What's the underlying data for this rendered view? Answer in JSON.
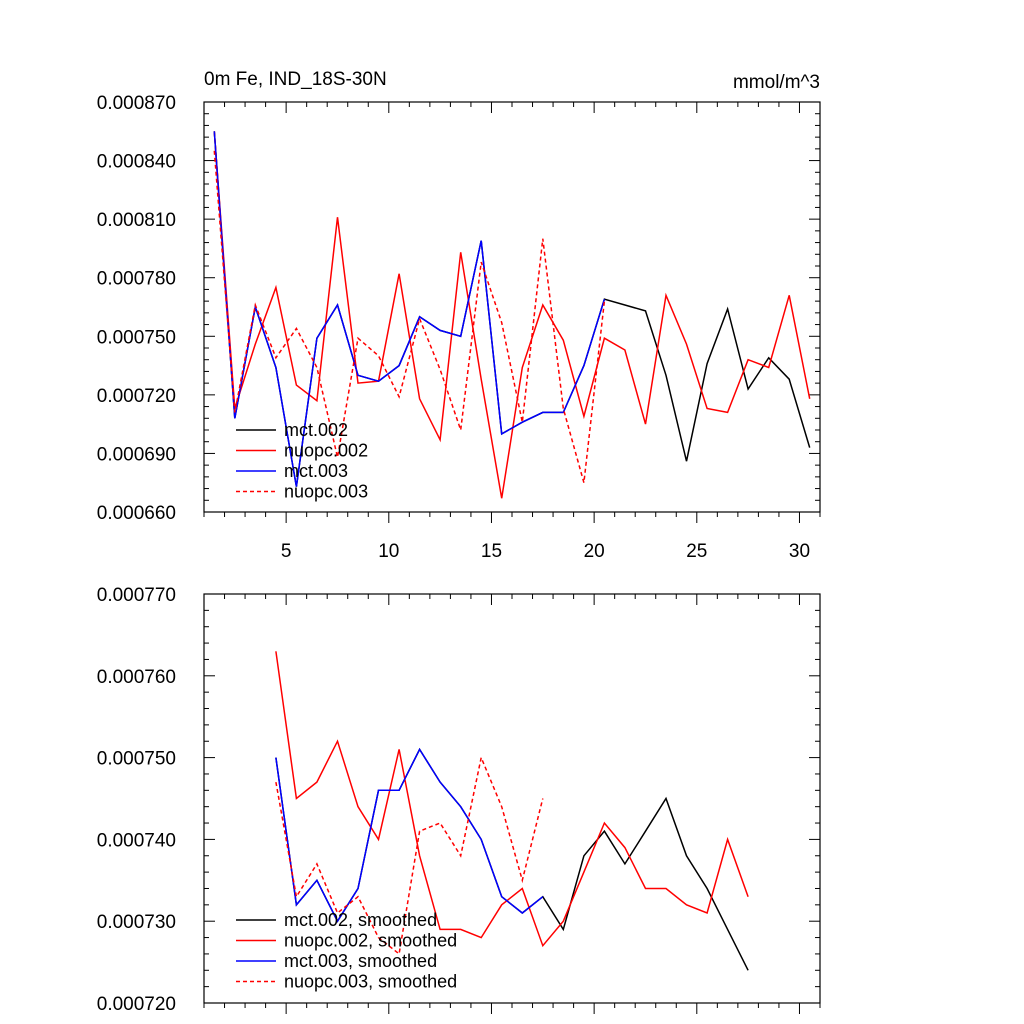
{
  "colors": {
    "mct_002": "#000000",
    "nuopc_002": "#ff0000",
    "mct_003": "#0000ff",
    "nuopc_003": "#ff0000"
  },
  "chart_data": [
    {
      "type": "line",
      "title": "0m Fe, IND_18S-30N",
      "units": "mmol/m^3",
      "xlabel": "",
      "ylabel": "",
      "xlim": [
        1,
        31
      ],
      "ylim": [
        0.00066,
        0.00087
      ],
      "y_tick_labels": [
        "0.000660",
        "0.000690",
        "0.000720",
        "0.000750",
        "0.000780",
        "0.000810",
        "0.000840",
        "0.000870"
      ],
      "y_ticks": [
        0.00066,
        0.00069,
        0.00072,
        0.00075,
        0.00078,
        0.00081,
        0.00084,
        0.00087
      ],
      "x_tick_labels": [
        "5",
        "10",
        "15",
        "20",
        "25",
        "30"
      ],
      "x_ticks": [
        5,
        10,
        15,
        20,
        25,
        30
      ],
      "legend_position": "bottom-left",
      "series": [
        {
          "name": "mct.002",
          "style": "solid",
          "color": "#000000",
          "x": [
            1.5,
            2.5,
            3.5,
            4.5,
            5.5,
            6.5,
            7.5,
            8.5,
            9.5,
            10.5,
            11.5,
            12.5,
            13.5,
            14.5,
            15.5,
            16.5,
            17.5,
            18.5,
            19.5,
            20.5,
            21.5,
            22.5,
            23.5,
            24.5,
            25.5,
            26.5,
            27.5,
            28.5,
            29.5,
            30.5
          ],
          "values": [
            0.000855,
            0.000708,
            0.000765,
            0.000734,
            0.000673,
            0.000749,
            0.000766,
            0.00073,
            0.000727,
            0.000735,
            0.00076,
            0.000753,
            0.00075,
            0.000799,
            0.0007,
            0.000706,
            0.000711,
            0.000711,
            0.000735,
            0.000769,
            0.000766,
            0.000763,
            0.00073,
            0.000686,
            0.000736,
            0.000764,
            0.000723,
            0.000739,
            0.000728,
            0.000693
          ]
        },
        {
          "name": "nuopc.002",
          "style": "solid",
          "color": "#ff0000",
          "x": [
            1.5,
            2.5,
            3.5,
            4.5,
            5.5,
            6.5,
            7.5,
            8.5,
            9.5,
            10.5,
            11.5,
            12.5,
            13.5,
            14.5,
            15.5,
            16.5,
            17.5,
            18.5,
            19.5,
            20.5,
            21.5,
            22.5,
            23.5,
            24.5,
            25.5,
            26.5,
            27.5,
            28.5,
            29.5,
            30.5
          ],
          "values": [
            0.000855,
            0.000713,
            0.000746,
            0.000775,
            0.000725,
            0.000717,
            0.000811,
            0.000726,
            0.000727,
            0.000782,
            0.000718,
            0.000697,
            0.000793,
            0.000728,
            0.000667,
            0.000734,
            0.000766,
            0.000748,
            0.000709,
            0.000749,
            0.000743,
            0.000705,
            0.000771,
            0.000746,
            0.000713,
            0.000711,
            0.000738,
            0.000734,
            0.000771,
            0.000718
          ]
        },
        {
          "name": "mct.003",
          "style": "solid",
          "color": "#0000ff",
          "x": [
            1.5,
            2.5,
            3.5,
            4.5,
            5.5,
            6.5,
            7.5,
            8.5,
            9.5,
            10.5,
            11.5,
            12.5,
            13.5,
            14.5,
            15.5,
            16.5,
            17.5,
            18.5,
            19.5,
            20.5
          ],
          "values": [
            0.000855,
            0.000708,
            0.000765,
            0.000734,
            0.000673,
            0.000749,
            0.000766,
            0.00073,
            0.000727,
            0.000735,
            0.00076,
            0.000753,
            0.00075,
            0.000799,
            0.0007,
            0.000706,
            0.000711,
            0.000711,
            0.000735,
            0.000769
          ]
        },
        {
          "name": "nuopc.003",
          "style": "dashed",
          "color": "#ff0000",
          "x": [
            1.5,
            2.5,
            3.5,
            4.5,
            5.5,
            6.5,
            7.5,
            8.5,
            9.5,
            10.5,
            11.5,
            12.5,
            13.5,
            14.5,
            15.5,
            16.5,
            17.5,
            18.5,
            19.5,
            20.5
          ],
          "values": [
            0.000845,
            0.000711,
            0.000766,
            0.000739,
            0.000754,
            0.000734,
            0.000688,
            0.000749,
            0.00074,
            0.000719,
            0.000759,
            0.000733,
            0.000702,
            0.000788,
            0.000757,
            0.000706,
            0.0008,
            0.000713,
            0.000675,
            0.000768
          ]
        }
      ]
    },
    {
      "type": "line",
      "title": "",
      "xlabel": "",
      "ylabel": "",
      "xlim": [
        1,
        31
      ],
      "ylim": [
        0.00072,
        0.00077
      ],
      "y_tick_labels": [
        "0.000720",
        "0.000730",
        "0.000740",
        "0.000750",
        "0.000760",
        "0.000770"
      ],
      "y_ticks": [
        0.00072,
        0.00073,
        0.00074,
        0.00075,
        0.00076,
        0.00077
      ],
      "x_ticks": [
        5,
        10,
        15,
        20,
        25,
        30
      ],
      "legend_position": "bottom-left",
      "series": [
        {
          "name": "mct.002, smoothed",
          "style": "solid",
          "color": "#000000",
          "x": [
            4.5,
            5.5,
            6.5,
            7.5,
            8.5,
            9.5,
            10.5,
            11.5,
            12.5,
            13.5,
            14.5,
            15.5,
            16.5,
            17.5,
            18.5,
            19.5,
            20.5,
            21.5,
            22.5,
            23.5,
            24.5,
            25.5,
            26.5,
            27.5
          ],
          "values": [
            0.00075,
            0.000732,
            0.000735,
            0.00073,
            0.000734,
            0.000746,
            0.000746,
            0.000751,
            0.000747,
            0.000744,
            0.00074,
            0.000733,
            0.000731,
            0.000733,
            0.000729,
            0.000738,
            0.000741,
            0.000737,
            0.000741,
            0.000745,
            0.000738,
            0.000734,
            0.000729,
            0.000724
          ]
        },
        {
          "name": "nuopc.002, smoothed",
          "style": "solid",
          "color": "#ff0000",
          "x": [
            4.5,
            5.5,
            6.5,
            7.5,
            8.5,
            9.5,
            10.5,
            11.5,
            12.5,
            13.5,
            14.5,
            15.5,
            16.5,
            17.5,
            18.5,
            19.5,
            20.5,
            21.5,
            22.5,
            23.5,
            24.5,
            25.5,
            26.5,
            27.5
          ],
          "values": [
            0.000763,
            0.000745,
            0.000747,
            0.000752,
            0.000744,
            0.00074,
            0.000751,
            0.000738,
            0.000729,
            0.000729,
            0.000728,
            0.000732,
            0.000734,
            0.000727,
            0.00073,
            0.000736,
            0.000742,
            0.000739,
            0.000734,
            0.000734,
            0.000732,
            0.000731,
            0.00074,
            0.000733
          ]
        },
        {
          "name": "mct.003, smoothed",
          "style": "solid",
          "color": "#0000ff",
          "x": [
            4.5,
            5.5,
            6.5,
            7.5,
            8.5,
            9.5,
            10.5,
            11.5,
            12.5,
            13.5,
            14.5,
            15.5,
            16.5,
            17.5
          ],
          "values": [
            0.00075,
            0.000732,
            0.000735,
            0.00073,
            0.000734,
            0.000746,
            0.000746,
            0.000751,
            0.000747,
            0.000744,
            0.00074,
            0.000733,
            0.000731,
            0.000733
          ]
        },
        {
          "name": "nuopc.003, smoothed",
          "style": "dashed",
          "color": "#ff0000",
          "x": [
            4.5,
            5.5,
            6.5,
            7.5,
            8.5,
            9.5,
            10.5,
            11.5,
            12.5,
            13.5,
            14.5,
            15.5,
            16.5,
            17.5
          ],
          "values": [
            0.000747,
            0.000733,
            0.000737,
            0.000731,
            0.000733,
            0.000728,
            0.000726,
            0.000741,
            0.000742,
            0.000738,
            0.00075,
            0.000744,
            0.000735,
            0.000745
          ]
        }
      ]
    }
  ]
}
